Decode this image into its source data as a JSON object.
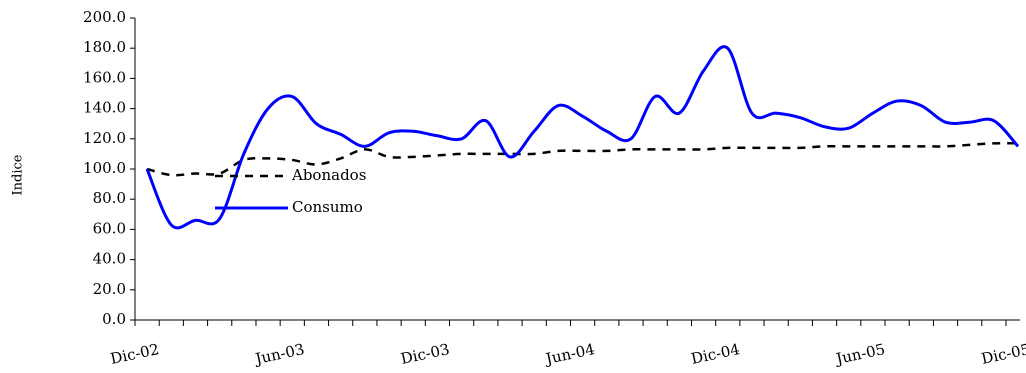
{
  "chart_data": {
    "type": "line",
    "y_label": "Indice",
    "categories": [
      "Dic-02",
      null,
      null,
      null,
      null,
      null,
      "Jun-03",
      null,
      null,
      null,
      null,
      null,
      "Dic-03",
      null,
      null,
      null,
      null,
      null,
      "Jun-04",
      null,
      null,
      null,
      null,
      null,
      "Dic-04",
      null,
      null,
      null,
      null,
      null,
      "Jun-05",
      null,
      null,
      null,
      null,
      null,
      "Dic-05"
    ],
    "series": [
      {
        "name": "Abonados",
        "color": "#000000",
        "dashed": true,
        "values": [
          100,
          96,
          97,
          97,
          106,
          107,
          106,
          103,
          107,
          113,
          108,
          108,
          109,
          110,
          110,
          110,
          110,
          112,
          112,
          112,
          113,
          113,
          113,
          113,
          114,
          114,
          114,
          114,
          115,
          115,
          115,
          115,
          115,
          115,
          116,
          117,
          117
        ]
      },
      {
        "name": "Consumo",
        "color": "#0000ff",
        "dashed": false,
        "values": [
          100,
          63,
          66,
          67,
          110,
          140,
          148,
          130,
          123,
          115,
          124,
          125,
          122,
          120,
          132,
          108,
          125,
          142,
          135,
          125,
          120,
          148,
          137,
          165,
          180,
          137,
          137,
          134,
          128,
          127,
          137,
          145,
          142,
          131,
          131,
          132,
          115
        ]
      }
    ],
    "ylim": [
      0,
      200
    ],
    "yticks": [
      {
        "value": 0,
        "label": "0.0"
      },
      {
        "value": 20,
        "label": "20.0"
      },
      {
        "value": 40,
        "label": "40.0"
      },
      {
        "value": 60,
        "label": "60.0"
      },
      {
        "value": 80,
        "label": "80.0"
      },
      {
        "value": 100,
        "label": "100.0"
      },
      {
        "value": 120,
        "label": "120.0"
      },
      {
        "value": 140,
        "label": "140.0"
      },
      {
        "value": 160,
        "label": "160.0"
      },
      {
        "value": 180,
        "label": "180.0"
      },
      {
        "value": 200,
        "label": "200.0"
      }
    ],
    "grid": false
  }
}
